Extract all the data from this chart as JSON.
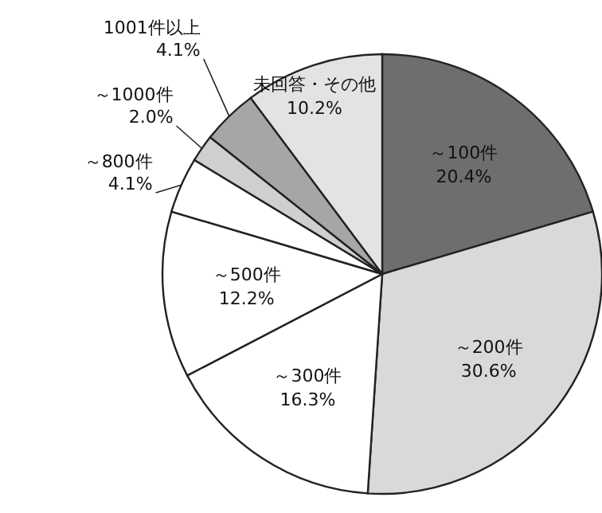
{
  "chart_data": {
    "type": "pie",
    "categories": [
      "～100件",
      "～200件",
      "～300件",
      "～500件",
      "～800件",
      "～1000件",
      "1001件以上",
      "未回答・その他"
    ],
    "values": [
      20.4,
      30.6,
      16.3,
      12.2,
      4.1,
      2.0,
      4.1,
      10.2
    ],
    "value_labels": [
      "20.4%",
      "30.6%",
      "16.3%",
      "12.2%",
      "4.1%",
      "2.0%",
      "4.1%",
      "10.2%"
    ],
    "colors": [
      "#6e6e6e",
      "#d9d9d9",
      "#ffffff",
      "#ffffff",
      "#ffffff",
      "#cfcfcf",
      "#a6a6a6",
      "#e3e3e3"
    ]
  }
}
